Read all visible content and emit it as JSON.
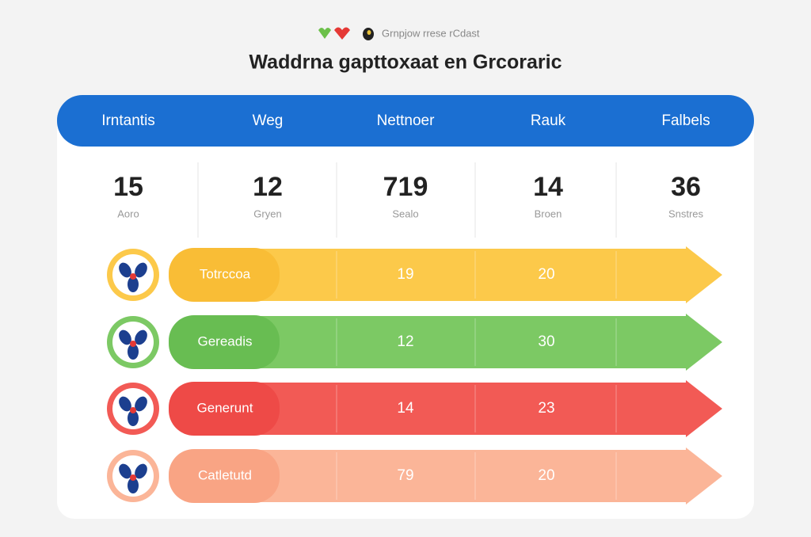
{
  "header": {
    "brand": "Grnpjow rrese rCdast",
    "title": "Waddrna gapttoxaat en Grcoraric"
  },
  "columns": [
    "Irntantis",
    "Weg",
    "Nettnoer",
    "Rauk",
    "Falbels"
  ],
  "stats": [
    {
      "value": 15,
      "label": "Aoro"
    },
    {
      "value": 12,
      "label": "Gryen"
    },
    {
      "value": 719,
      "label": "Sealo"
    },
    {
      "value": 14,
      "label": "Broen"
    },
    {
      "value": 36,
      "label": "Snstres"
    }
  ],
  "rows": [
    {
      "label": "Totrccoa",
      "values": [
        19,
        20
      ],
      "color": "#fcc94a",
      "accent": "#f9bd36"
    },
    {
      "label": "Gereadis",
      "values": [
        12,
        30
      ],
      "color": "#7cc964",
      "accent": "#68bd52"
    },
    {
      "label": "Generunt",
      "values": [
        14,
        23
      ],
      "color": "#f25a55",
      "accent": "#ee4a47"
    },
    {
      "label": "Catletutd",
      "values": [
        79,
        20
      ],
      "color": "#fbb598",
      "accent": "#f9a484"
    }
  ]
}
